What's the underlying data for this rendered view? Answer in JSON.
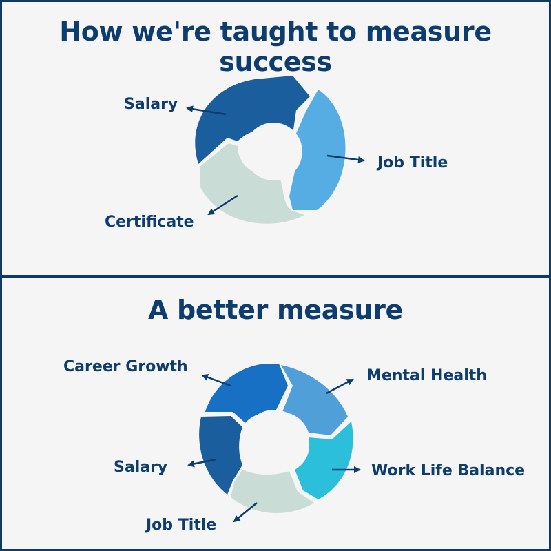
{
  "panels": [
    {
      "title": "How we're taught to measure success",
      "segments": [
        {
          "label": "Salary",
          "color": "#1b5e9e"
        },
        {
          "label": "Job Title",
          "color": "#55ade3"
        },
        {
          "label": "Certificate",
          "color": "#c9dcd6"
        }
      ]
    },
    {
      "title": "A better measure",
      "segments": [
        {
          "label": "Career Growth",
          "color": "#1870c4"
        },
        {
          "label": "Mental Health",
          "color": "#519fd8"
        },
        {
          "label": "Work Life Balance",
          "color": "#2bbfdc"
        },
        {
          "label": "Job Title",
          "color": "#c9dcd6"
        },
        {
          "label": "Salary",
          "color": "#1b5e9e"
        }
      ]
    }
  ],
  "colors": {
    "text": "#0d3c6e",
    "border": "#0f3a66",
    "background": "#f5f5f5"
  }
}
